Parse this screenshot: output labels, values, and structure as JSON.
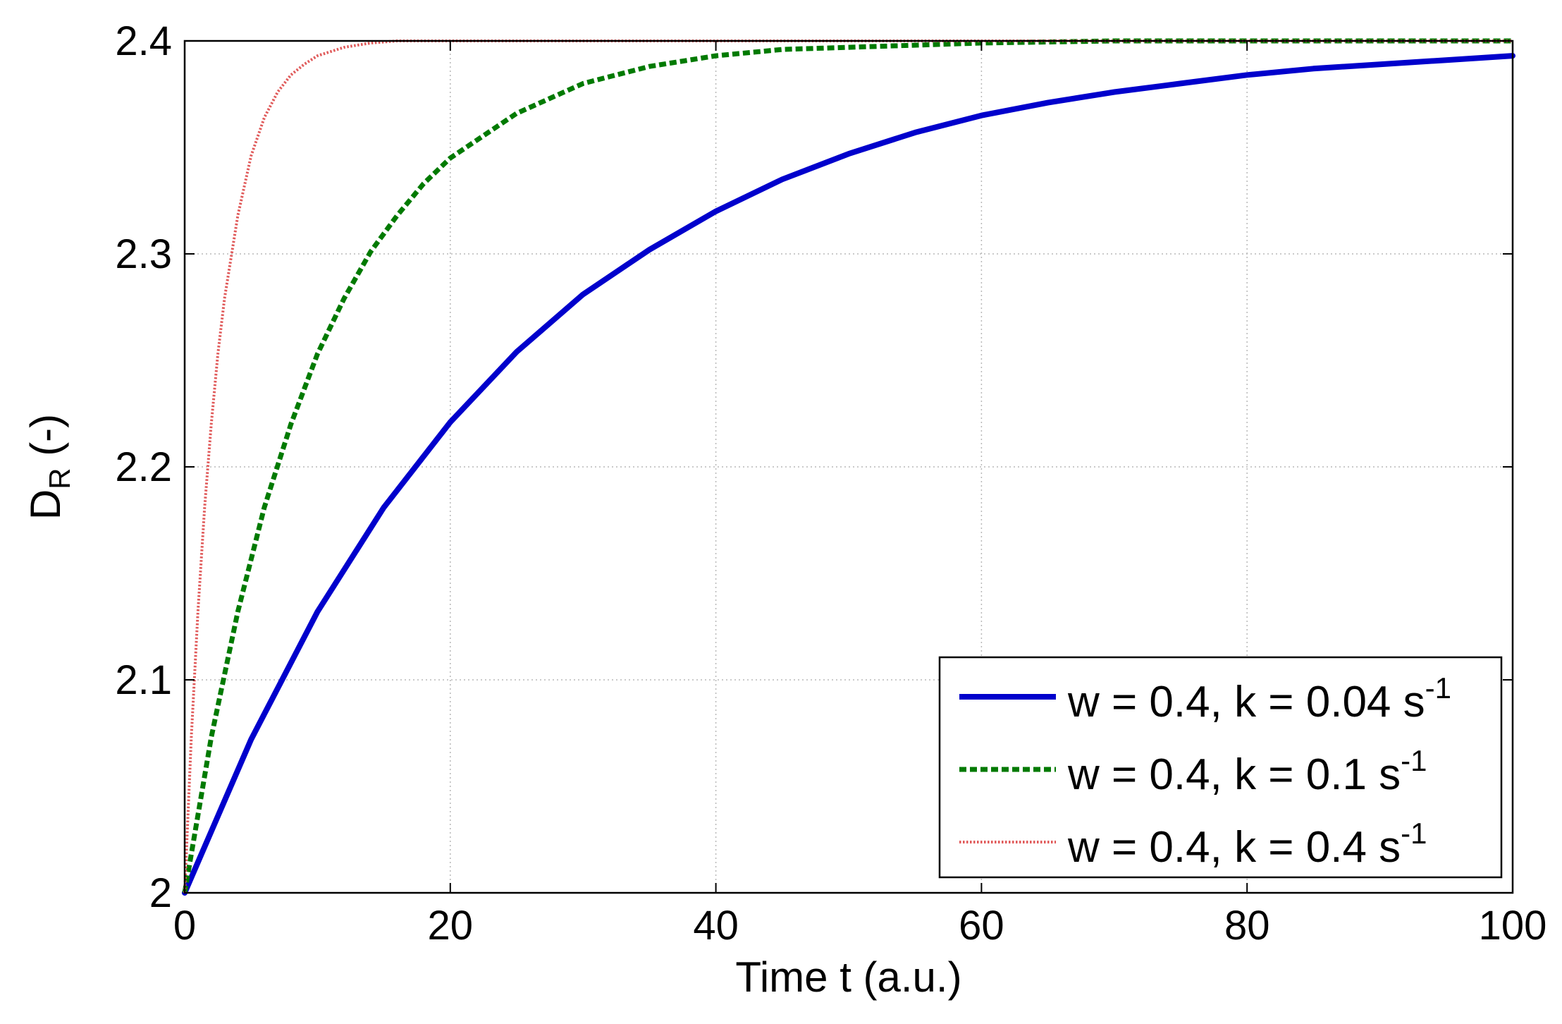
{
  "chart_data": {
    "type": "line",
    "xlabel": "Time t (a.u.)",
    "ylabel": {
      "main": "D",
      "sub": "R",
      "rest": " (-)"
    },
    "xlim": [
      0,
      100
    ],
    "ylim": [
      2,
      2.4
    ],
    "xticks": [
      0,
      20,
      40,
      60,
      80,
      100
    ],
    "xtick_labels": [
      "0",
      "20",
      "40",
      "60",
      "80",
      "100"
    ],
    "yticks": [
      2,
      2.1,
      2.2,
      2.3,
      2.4
    ],
    "ytick_labels": [
      "2",
      "2.1",
      "2.2",
      "2.3",
      "2.4"
    ],
    "grid": true,
    "legend_position": "bottom-right",
    "series": [
      {
        "name": "w = 0.4, k = 0.04 s-1",
        "label_main": "w = 0.4, k = 0.04 s",
        "label_sup": "-1",
        "color": "#0000cc",
        "style": "solid",
        "x": [
          0,
          5,
          10,
          15,
          20,
          25,
          30,
          35,
          40,
          45,
          50,
          55,
          60,
          65,
          70,
          75,
          80,
          85,
          90,
          95,
          100
        ],
        "y": [
          2.0,
          2.072,
          2.132,
          2.181,
          2.221,
          2.254,
          2.281,
          2.302,
          2.32,
          2.335,
          2.347,
          2.357,
          2.365,
          2.371,
          2.376,
          2.38,
          2.384,
          2.387,
          2.389,
          2.391,
          2.393
        ]
      },
      {
        "name": "w = 0.4, k = 0.1 s-1",
        "label_main": "w = 0.4, k = 0.1 s",
        "label_sup": "-1",
        "color": "#007a00",
        "style": "dashed",
        "x": [
          0,
          2,
          4,
          6,
          8,
          10,
          12,
          14,
          16,
          18,
          20,
          25,
          30,
          35,
          40,
          45,
          50,
          60,
          70,
          80,
          90,
          100
        ],
        "y": [
          2.0,
          2.073,
          2.132,
          2.181,
          2.22,
          2.253,
          2.279,
          2.301,
          2.318,
          2.333,
          2.345,
          2.366,
          2.38,
          2.388,
          2.393,
          2.396,
          2.397,
          2.399,
          2.4,
          2.4,
          2.4,
          2.4
        ]
      },
      {
        "name": "w = 0.4, k = 0.4 s-1",
        "label_main": "w = 0.4, k = 0.4 s",
        "label_sup": "-1",
        "color": "#e05a5a",
        "style": "dotted",
        "x": [
          0,
          0.5,
          1,
          1.5,
          2,
          2.5,
          3,
          4,
          5,
          6,
          7,
          8,
          9,
          10,
          12,
          14,
          16,
          20,
          30,
          50,
          100
        ],
        "y": [
          2.0,
          2.073,
          2.132,
          2.181,
          2.22,
          2.253,
          2.279,
          2.318,
          2.346,
          2.364,
          2.376,
          2.384,
          2.389,
          2.393,
          2.397,
          2.399,
          2.4,
          2.4,
          2.4,
          2.4,
          2.4
        ]
      }
    ]
  }
}
